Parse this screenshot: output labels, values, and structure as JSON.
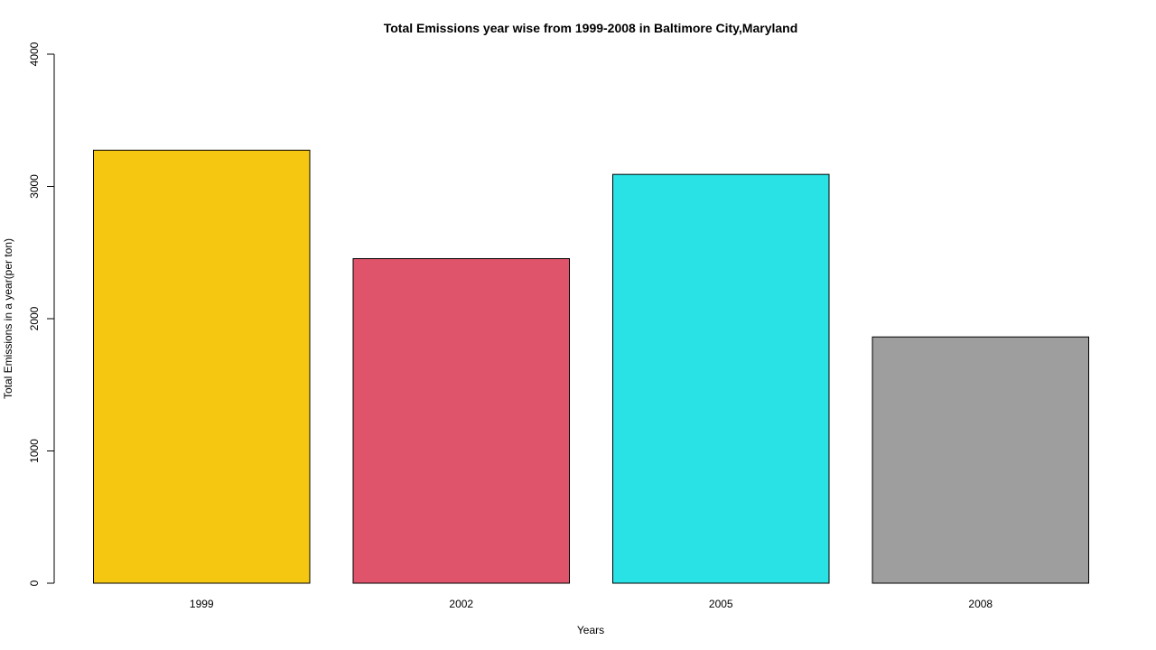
{
  "chart_data": {
    "type": "bar",
    "title": "Total Emissions year wise from 1999-2008 in Baltimore City,Maryland",
    "xlabel": "Years",
    "ylabel": "Total Emissions in a year(per ton)",
    "categories": [
      "1999",
      "2002",
      "2005",
      "2008"
    ],
    "values": [
      3274,
      2454,
      3091,
      1862
    ],
    "colors": [
      "#F5C710",
      "#DF536B",
      "#28E2E5",
      "#9E9E9E"
    ],
    "ylim": [
      0,
      4000
    ],
    "yticks": [
      0,
      1000,
      2000,
      3000,
      4000
    ],
    "grid": false,
    "legend": "none"
  }
}
